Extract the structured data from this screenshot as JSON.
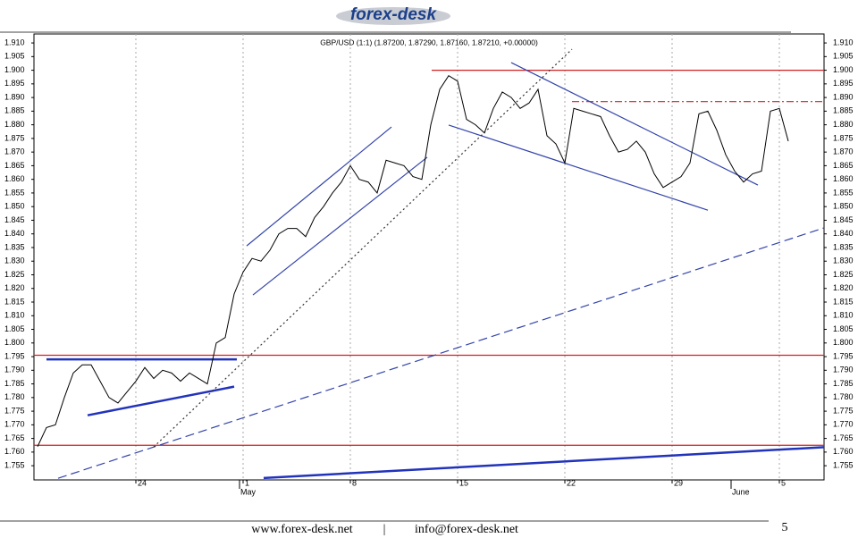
{
  "header": {
    "logo": "forex-desk"
  },
  "chart_data": {
    "type": "line",
    "title": "GBP/USD (1:1) (1.87200, 1.87290, 1.87160, 1.87210, +0.00000)",
    "categories": [
      null,
      null,
      null,
      null,
      null,
      null,
      null,
      null,
      null,
      null,
      null,
      "24",
      null,
      null,
      null,
      null,
      null,
      null,
      null,
      null,
      null,
      null,
      null,
      "1",
      null,
      null,
      null,
      null,
      null,
      null,
      null,
      null,
      null,
      null,
      null,
      "8",
      null,
      null,
      null,
      null,
      null,
      null,
      null,
      null,
      null,
      null,
      null,
      "15",
      null,
      null,
      null,
      null,
      null,
      null,
      null,
      null,
      null,
      null,
      null,
      "22",
      null,
      null,
      null,
      null,
      null,
      null,
      null,
      null,
      null,
      null,
      null,
      "29",
      null,
      null,
      null,
      null,
      null,
      null,
      null,
      null,
      null,
      null,
      null,
      "5",
      null
    ],
    "values": [
      1.762,
      1.769,
      1.77,
      1.78,
      1.789,
      1.792,
      1.792,
      1.786,
      1.78,
      1.778,
      1.782,
      1.786,
      1.791,
      1.787,
      1.79,
      1.789,
      1.786,
      1.789,
      1.787,
      1.785,
      1.8,
      1.802,
      1.818,
      1.826,
      1.831,
      1.83,
      1.834,
      1.84,
      1.842,
      1.842,
      1.839,
      1.846,
      1.85,
      1.855,
      1.859,
      1.865,
      1.86,
      1.859,
      1.855,
      1.867,
      1.866,
      1.865,
      1.861,
      1.86,
      1.88,
      1.893,
      1.898,
      1.896,
      1.882,
      1.88,
      1.877,
      1.886,
      1.892,
      1.89,
      1.886,
      1.888,
      1.893,
      1.876,
      1.873,
      1.866,
      1.886,
      1.885,
      1.884,
      1.883,
      1.876,
      1.87,
      1.871,
      1.874,
      1.87,
      1.862,
      1.857,
      1.859,
      1.861,
      1.866,
      1.884,
      1.885,
      1.878,
      1.869,
      1.863,
      1.859,
      1.862,
      1.863,
      1.885,
      1.886,
      1.874
    ],
    "color": "#000000",
    "months": [
      {
        "value": 22.6,
        "label": "May"
      },
      {
        "value": 77.6,
        "label": "June"
      }
    ],
    "ylim": [
      1.7498,
      1.9133
    ],
    "yticks": [
      {
        "value": 1.91,
        "label": "1.910"
      },
      1.905,
      {
        "value": 1.9,
        "label": "1.900"
      },
      1.895,
      {
        "value": 1.89,
        "label": "1.890"
      },
      1.885,
      {
        "value": 1.88,
        "label": "1.880"
      },
      1.875,
      {
        "value": 1.87,
        "label": "1.870"
      },
      1.865,
      {
        "value": 1.86,
        "label": "1.860"
      },
      1.855,
      {
        "value": 1.85,
        "label": "1.850"
      },
      1.845,
      {
        "value": 1.84,
        "label": "1.840"
      },
      1.835,
      {
        "value": 1.83,
        "label": "1.830"
      },
      1.825,
      {
        "value": 1.82,
        "label": "1.820"
      },
      1.815,
      {
        "value": 1.81,
        "label": "1.810"
      },
      1.805,
      {
        "value": 1.8,
        "label": "1.800"
      },
      1.795,
      {
        "value": 1.79,
        "label": "1.790"
      },
      1.785,
      {
        "value": 1.78,
        "label": "1.780"
      },
      1.775,
      {
        "value": 1.77,
        "label": "1.770"
      },
      1.765,
      {
        "value": 1.76,
        "label": "1.760"
      },
      1.755
    ],
    "trendlines": [
      {
        "x": [
          44.1,
          88
        ],
        "y": [
          1.9,
          1.9
        ],
        "color": "#d42020",
        "style": "solid"
      },
      {
        "x": [
          -0.4,
          88
        ],
        "y": [
          1.7955,
          1.7955
        ],
        "color": "#d42020",
        "style": "solid"
      },
      {
        "x": [
          -0.4,
          88
        ],
        "y": [
          1.7625,
          1.7625
        ],
        "color": "#d42020",
        "style": "solid"
      },
      {
        "x": [
          59.8,
          88
        ],
        "y": [
          1.8885,
          1.8885
        ],
        "color": "#d42020",
        "style": "dashdot"
      },
      {
        "x": [
          1,
          22.3
        ],
        "y": [
          1.794,
          1.794
        ],
        "color": "#2233bb",
        "style": "thick"
      },
      {
        "x": [
          5.6,
          22
        ],
        "y": [
          1.7735,
          1.784
        ],
        "color": "#2233bb",
        "style": "thick"
      },
      {
        "x": [
          25.3,
          88
        ],
        "y": [
          1.7505,
          1.7618
        ],
        "color": "#2233bb",
        "style": "thick"
      },
      {
        "x": [
          23.4,
          39.6
        ],
        "y": [
          1.8356,
          1.8792
        ],
        "color": "#3344aa",
        "style": "solid"
      },
      {
        "x": [
          24.1,
          43.6
        ],
        "y": [
          1.8176,
          1.8681
        ],
        "color": "#3344aa",
        "style": "solid"
      },
      {
        "x": [
          53,
          80.6
        ],
        "y": [
          1.9028,
          1.8579
        ],
        "color": "#3344aa",
        "style": "solid"
      },
      {
        "x": [
          46,
          75
        ],
        "y": [
          1.8799,
          1.8487
        ],
        "color": "#3344aa",
        "style": "solid"
      },
      {
        "x": [
          2.3,
          88
        ],
        "y": [
          1.7504,
          1.8422
        ],
        "color": "#3344aa",
        "style": "dashed"
      },
      {
        "x": [
          13,
          59.8
        ],
        "y": [
          1.7619,
          1.9077
        ],
        "color": "#333333",
        "style": "dotted"
      }
    ]
  },
  "footer": {
    "website": "www.forex-desk.net",
    "separator": "|",
    "email": "info@forex-desk.net",
    "page": "5"
  }
}
